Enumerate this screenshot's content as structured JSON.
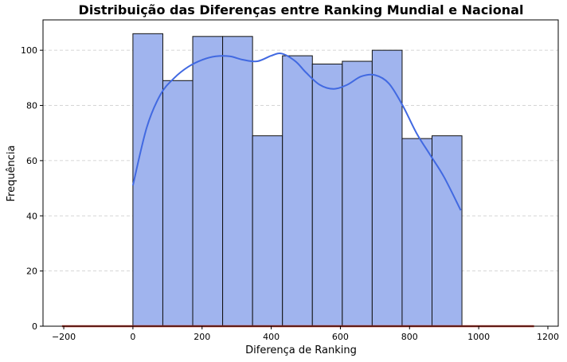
{
  "chart_data": {
    "type": "bar",
    "title": "Distribuição das Diferenças entre Ranking Mundial e Nacional",
    "xlabel": "Diferença de Ranking",
    "ylabel": "Frequência",
    "xlim": [
      -260,
      1230
    ],
    "ylim": [
      0,
      111
    ],
    "xticks": [
      -200,
      0,
      200,
      400,
      600,
      800,
      1000,
      1200
    ],
    "yticks": [
      0,
      20,
      40,
      60,
      80,
      100
    ],
    "grid": "horizontal dashed",
    "bins": [
      {
        "start": 0,
        "end": 86.5,
        "count": 106
      },
      {
        "start": 86.5,
        "end": 173,
        "count": 89
      },
      {
        "start": 173,
        "end": 259.5,
        "count": 105
      },
      {
        "start": 259.5,
        "end": 346,
        "count": 105
      },
      {
        "start": 346,
        "end": 432.5,
        "count": 69
      },
      {
        "start": 432.5,
        "end": 519,
        "count": 98
      },
      {
        "start": 519,
        "end": 605.5,
        "count": 95
      },
      {
        "start": 605.5,
        "end": 692,
        "count": 96
      },
      {
        "start": 692,
        "end": 778.5,
        "count": 100
      },
      {
        "start": 778.5,
        "end": 865,
        "count": 68
      },
      {
        "start": 865,
        "end": 951.5,
        "count": 69
      }
    ],
    "kde": {
      "x": [
        0,
        40,
        80,
        120,
        160,
        200,
        240,
        280,
        320,
        360,
        400,
        430,
        470,
        500,
        540,
        580,
        620,
        660,
        700,
        740,
        780,
        820,
        860,
        900,
        948
      ],
      "y": [
        51,
        72,
        84,
        90,
        94,
        96.5,
        97.8,
        97.8,
        96.5,
        96,
        98,
        98.8,
        96,
        92,
        87.5,
        86,
        87.5,
        90.5,
        91,
        88,
        80,
        70,
        62,
        54,
        42
      ]
    },
    "baseline": {
      "x": [
        -205,
        1160
      ],
      "y": 0
    },
    "colors": {
      "bar_fill": "#a0b4ee",
      "bar_edge": "#111111",
      "kde_line": "#4169e1",
      "baseline": "#c0392b",
      "grid": "#c8c8c8"
    }
  }
}
